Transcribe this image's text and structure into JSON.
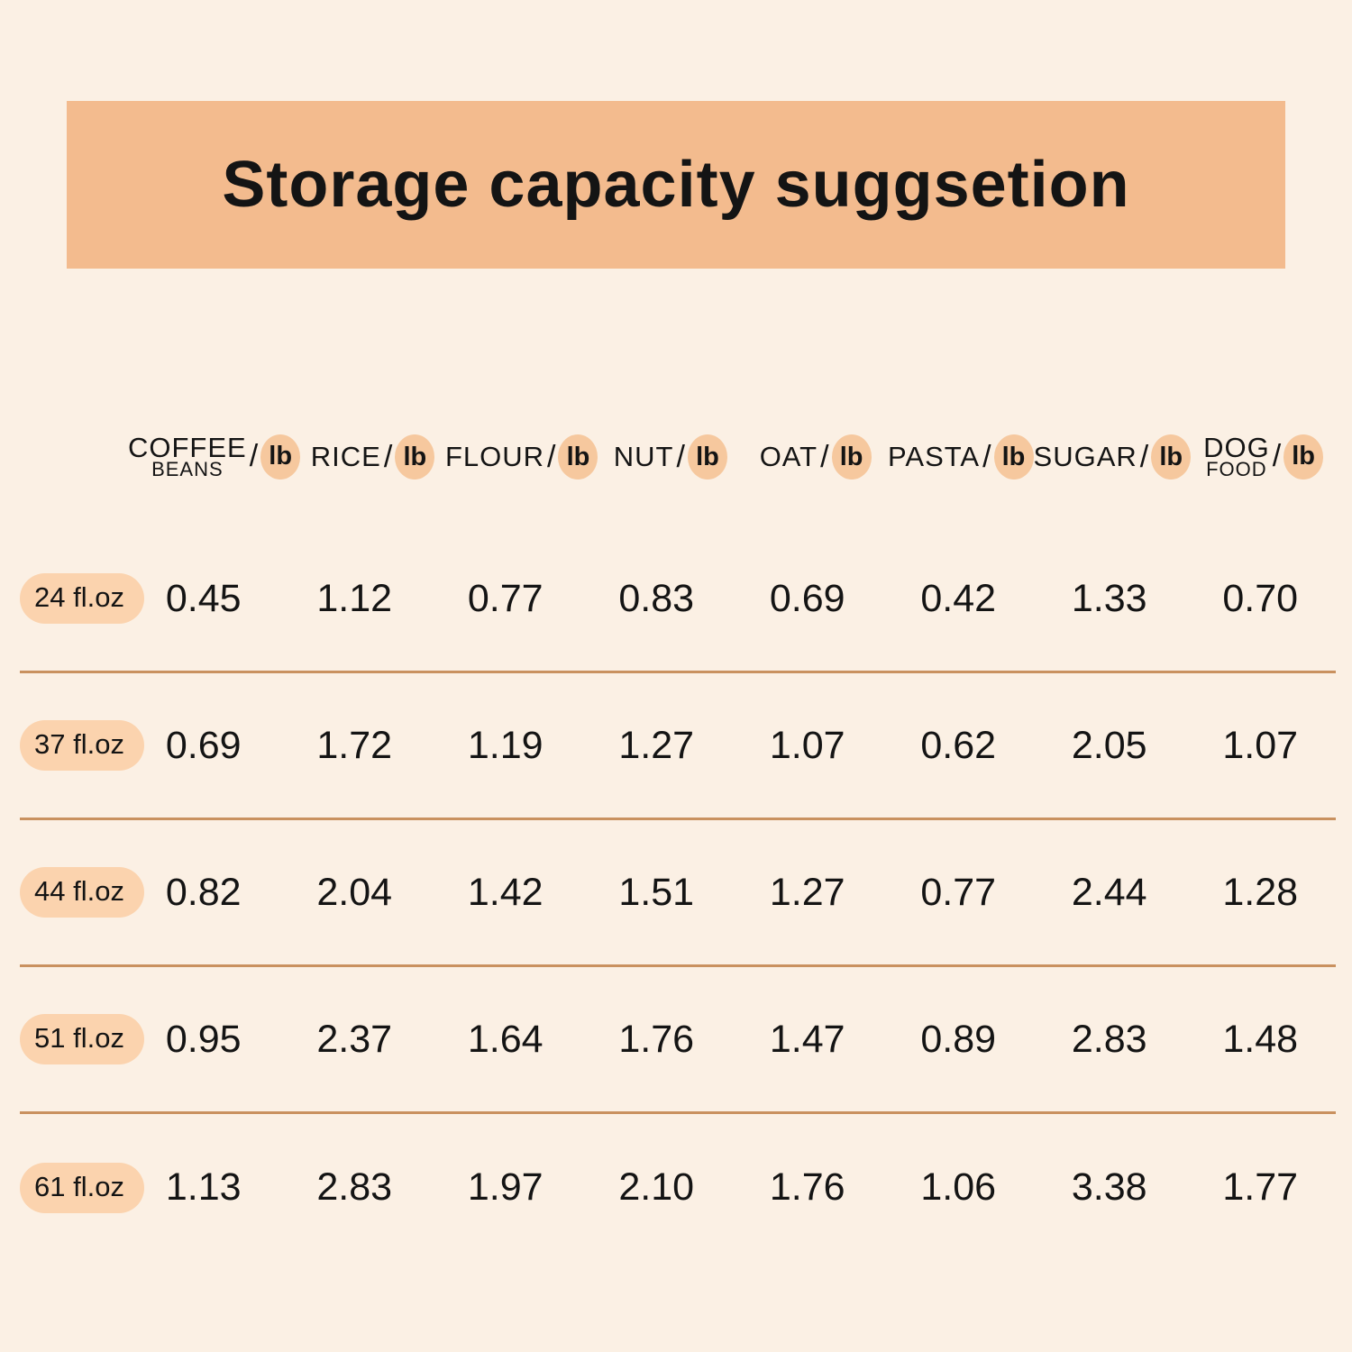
{
  "title": "Storage capacity suggsetion",
  "chart_data": {
    "type": "table",
    "title": "Storage capacity suggsetion",
    "unit_label": "lb",
    "columns": [
      {
        "name": "COFFEE",
        "sub": "BEANS",
        "unit": "lb"
      },
      {
        "name": "RICE",
        "sub": "",
        "unit": "lb"
      },
      {
        "name": "FLOUR",
        "sub": "",
        "unit": "lb"
      },
      {
        "name": "NUT",
        "sub": "",
        "unit": "lb"
      },
      {
        "name": "OAT",
        "sub": "",
        "unit": "lb"
      },
      {
        "name": "PASTA",
        "sub": "",
        "unit": "lb"
      },
      {
        "name": "SUGAR",
        "sub": "",
        "unit": "lb"
      },
      {
        "name": "DOG",
        "sub": "FOOD",
        "unit": "lb"
      }
    ],
    "rows": [
      {
        "label": "24 fl.oz",
        "values": [
          "0.45",
          "1.12",
          "0.77",
          "0.83",
          "0.69",
          "0.42",
          "1.33",
          "0.70"
        ]
      },
      {
        "label": "37 fl.oz",
        "values": [
          "0.69",
          "1.72",
          "1.19",
          "1.27",
          "1.07",
          "0.62",
          "2.05",
          "1.07"
        ]
      },
      {
        "label": "44 fl.oz",
        "values": [
          "0.82",
          "2.04",
          "1.42",
          "1.51",
          "1.27",
          "0.77",
          "2.44",
          "1.28"
        ]
      },
      {
        "label": "51 fl.oz",
        "values": [
          "0.95",
          "2.37",
          "1.64",
          "1.76",
          "1.47",
          "0.89",
          "2.83",
          "1.48"
        ]
      },
      {
        "label": "61 fl.oz",
        "values": [
          "1.13",
          "2.83",
          "1.97",
          "2.10",
          "1.76",
          "1.06",
          "3.38",
          "1.77"
        ]
      }
    ]
  },
  "colors": {
    "background": "#fbf0e4",
    "banner": "#f3bb8e",
    "highlight_pill": "#fbd3ae",
    "unit_badge": "#f6c89e",
    "divider": "#c9915f",
    "text": "#141414"
  }
}
